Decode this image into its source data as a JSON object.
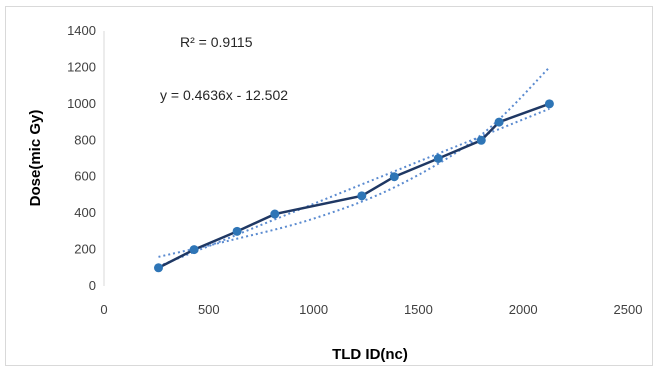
{
  "chart_data": {
    "type": "line",
    "xlabel": "TLD ID(nc)",
    "ylabel": "Dose(mic Gy)",
    "xlim": [
      0,
      2500
    ],
    "ylim": [
      0,
      1400
    ],
    "x_ticks": [
      0,
      500,
      1000,
      1500,
      2000,
      2500
    ],
    "y_ticks": [
      0,
      200,
      400,
      600,
      800,
      1000,
      1200,
      1400
    ],
    "grid": false,
    "annotations": [
      "R² = 0.9115",
      "y = 0.4636x - 12.502"
    ],
    "series": [
      {
        "x": [
          260,
          430,
          635,
          815,
          1230,
          1385,
          1595,
          1800,
          1885,
          2125
        ],
        "y": [
          100,
          200,
          300,
          395,
          495,
          600,
          700,
          800,
          900,
          1000
        ],
        "color": "#1f3864",
        "marker_color": "#2e75b6"
      }
    ],
    "trendlines": [
      {
        "kind": "linear",
        "slope": 0.4636,
        "intercept": -12.502,
        "x_range": [
          260,
          2125
        ],
        "color": "#5b8bd0"
      },
      {
        "kind": "curve",
        "x": [
          260,
          600,
          1000,
          1400,
          1800,
          2125
        ],
        "y": [
          160,
          250,
          370,
          550,
          830,
          1200
        ],
        "color": "#5b8bd0"
      }
    ]
  }
}
